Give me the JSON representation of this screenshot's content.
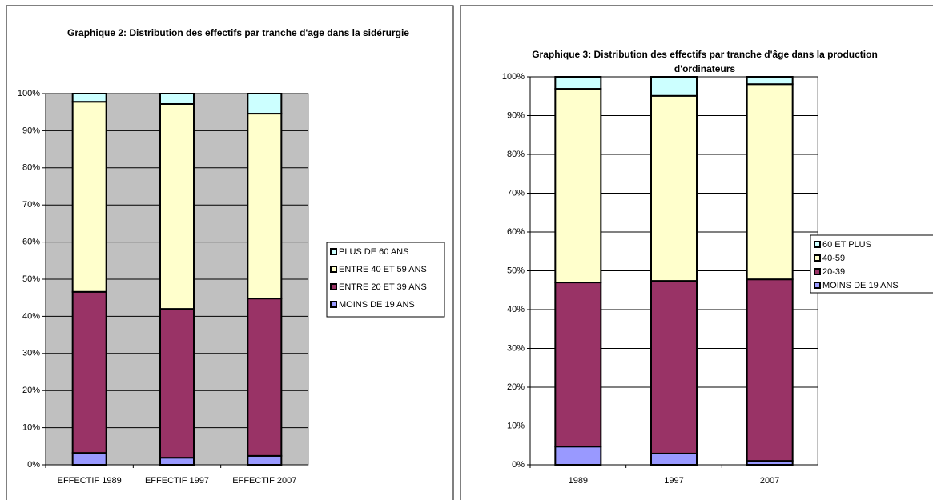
{
  "chart_data": [
    {
      "type": "bar",
      "stacked": true,
      "title": "Graphique 2: Distribution des effectifs par tranche d'age dans la sidérurgie",
      "categories": [
        "EFFECTIF 1989",
        "EFFECTIF 1997",
        "EFFECTIF 2007"
      ],
      "series": [
        {
          "name": "MOINS DE 19 ANS",
          "color": "#9999ff",
          "values": [
            3.2,
            1.9,
            2.4
          ]
        },
        {
          "name": "ENTRE 20 ET 39 ANS",
          "color": "#993366",
          "values": [
            43.4,
            40.1,
            42.4
          ]
        },
        {
          "name": "ENTRE 40 ET 59 ANS",
          "color": "#ffffcc",
          "values": [
            51.2,
            55.2,
            49.8
          ]
        },
        {
          "name": "PLUS DE 60 ANS",
          "color": "#ccffff",
          "values": [
            2.2,
            2.8,
            5.4
          ]
        }
      ],
      "ylim": [
        0,
        100
      ],
      "yticks": [
        {
          "value": 0,
          "label": "0%"
        },
        {
          "value": 10,
          "label": "10%"
        },
        {
          "value": 20,
          "label": "20%"
        },
        {
          "value": 30,
          "label": "30%"
        },
        {
          "value": 40,
          "label": "40%"
        },
        {
          "value": 50,
          "label": "50%"
        },
        {
          "value": 60,
          "label": "60%"
        },
        {
          "value": 70,
          "label": "70%"
        },
        {
          "value": 80,
          "label": "80%"
        },
        {
          "value": 90,
          "label": "90%"
        },
        {
          "value": 100,
          "label": "100%"
        }
      ],
      "grid": true,
      "legend": "right",
      "plot_background": "#c0c0c0"
    },
    {
      "type": "bar",
      "stacked": true,
      "title": "Graphique 3: Distribution des effectifs par tranche d'âge dans la production d'ordinateurs",
      "categories": [
        "1989",
        "1997",
        "2007"
      ],
      "series": [
        {
          "name": "MOINS DE 19 ANS",
          "color": "#9999ff",
          "values": [
            4.7,
            2.9,
            1.0
          ]
        },
        {
          "name": "20-39",
          "color": "#993366",
          "values": [
            42.3,
            44.5,
            46.8
          ]
        },
        {
          "name": "40-59",
          "color": "#ffffcc",
          "values": [
            49.9,
            47.7,
            50.3
          ]
        },
        {
          "name": "60 ET PLUS",
          "color": "#ccffff",
          "values": [
            3.1,
            4.9,
            1.9
          ]
        }
      ],
      "ylim": [
        0,
        100
      ],
      "yticks": [
        {
          "value": 0,
          "label": "0%"
        },
        {
          "value": 10,
          "label": "10%"
        },
        {
          "value": 20,
          "label": "20%"
        },
        {
          "value": 30,
          "label": "30%"
        },
        {
          "value": 40,
          "label": "40%"
        },
        {
          "value": 50,
          "label": "50%"
        },
        {
          "value": 60,
          "label": "60%"
        },
        {
          "value": 70,
          "label": "70%"
        },
        {
          "value": 80,
          "label": "80%"
        },
        {
          "value": 90,
          "label": "90%"
        },
        {
          "value": 100,
          "label": "100%"
        }
      ],
      "grid": true,
      "legend": "right",
      "plot_background": "#ffffff"
    }
  ]
}
